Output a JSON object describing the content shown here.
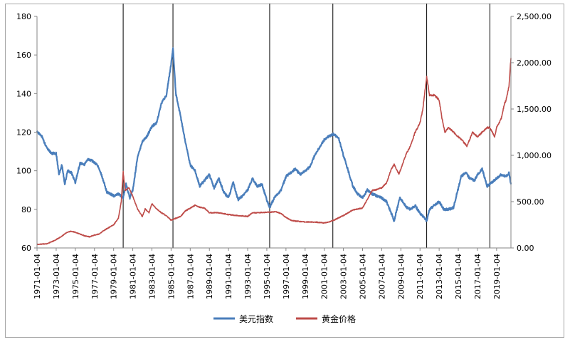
{
  "chart_data": {
    "type": "line",
    "title": "",
    "xlabel": "",
    "ylabel_left": "",
    "ylabel_right": "",
    "y_left_lim": [
      60,
      180
    ],
    "y_left_ticks": [
      "60",
      "80",
      "100",
      "120",
      "140",
      "160",
      "180"
    ],
    "y_right_lim": [
      0,
      2500
    ],
    "y_right_ticks": [
      "0.00",
      "500.00",
      "1,000.00",
      "1,500.00",
      "2,000.00",
      "2,500.00"
    ],
    "x_lim": [
      1971.0,
      2020.5
    ],
    "x_tick_labels": [
      "1971-01-04",
      "1973-01-04",
      "1975-01-04",
      "1977-01-04",
      "1979-01-04",
      "1981-01-04",
      "1983-01-04",
      "1985-01-04",
      "1987-01-04",
      "1989-01-04",
      "1991-01-04",
      "1993-01-04",
      "1995-01-04",
      "1997-01-04",
      "1999-01-04",
      "2001-01-04",
      "2003-01-04",
      "2005-01-04",
      "2007-01-04",
      "2009-01-04",
      "2011-01-04",
      "2013-01-04",
      "2015-01-04",
      "2017-01-04",
      "2019-01-04"
    ],
    "vertical_markers": [
      1980.0,
      1985.2,
      1995.3,
      2001.9,
      2011.7,
      2018.3
    ],
    "grid": false,
    "legend_position": "bottom",
    "series": [
      {
        "name": "美元指数",
        "axis": "left",
        "color": "#4a7ebb",
        "x": [
          1971.0,
          1971.5,
          1972.0,
          1972.5,
          1973.0,
          1973.3,
          1973.6,
          1973.9,
          1974.2,
          1974.6,
          1975.0,
          1975.5,
          1975.9,
          1976.3,
          1976.8,
          1977.3,
          1977.8,
          1978.3,
          1978.7,
          1979.0,
          1979.5,
          1980.0,
          1980.3,
          1980.7,
          1981.0,
          1981.5,
          1982.0,
          1982.5,
          1983.0,
          1983.5,
          1984.0,
          1984.5,
          1985.0,
          1985.2,
          1985.5,
          1986.0,
          1986.5,
          1987.0,
          1987.5,
          1988.0,
          1988.5,
          1989.0,
          1989.5,
          1990.0,
          1990.5,
          1991.0,
          1991.5,
          1992.0,
          1992.5,
          1993.0,
          1993.5,
          1994.0,
          1994.5,
          1995.0,
          1995.3,
          1995.8,
          1996.5,
          1997.0,
          1997.5,
          1998.0,
          1998.5,
          1999.0,
          1999.5,
          2000.0,
          2000.5,
          2001.0,
          2001.5,
          2002.0,
          2002.5,
          2003.0,
          2003.5,
          2004.0,
          2004.5,
          2005.0,
          2005.5,
          2006.0,
          2006.5,
          2007.0,
          2007.5,
          2008.0,
          2008.3,
          2008.6,
          2008.9,
          2009.2,
          2009.6,
          2010.0,
          2010.5,
          2011.0,
          2011.4,
          2011.7,
          2012.0,
          2012.5,
          2013.0,
          2013.5,
          2014.0,
          2014.5,
          2015.0,
          2015.3,
          2015.8,
          2016.2,
          2016.7,
          2017.0,
          2017.5,
          2018.0,
          2018.5,
          2019.0,
          2019.5,
          2020.0,
          2020.3,
          2020.5
        ],
        "values": [
          120,
          118,
          112,
          109,
          109,
          98,
          103,
          93,
          100,
          99,
          94,
          104,
          103,
          106,
          105,
          103,
          97,
          89,
          88,
          87,
          88,
          86,
          93,
          86,
          90,
          107,
          115,
          118,
          123,
          125,
          135,
          139,
          155,
          164,
          140,
          128,
          115,
          103,
          100,
          92,
          95,
          98,
          91,
          96,
          89,
          86,
          94,
          85,
          87,
          90,
          96,
          92,
          93,
          85,
          81,
          86,
          90,
          97,
          99,
          101,
          98,
          100,
          102,
          108,
          112,
          116,
          118,
          119,
          117,
          108,
          100,
          92,
          88,
          86,
          90,
          88,
          87,
          86,
          84,
          78,
          74,
          80,
          86,
          84,
          81,
          80,
          82,
          78,
          76,
          74,
          80,
          82,
          84,
          80,
          80,
          81,
          91,
          97,
          99,
          96,
          95,
          98,
          101,
          92,
          94,
          96,
          98,
          97,
          99,
          93
        ]
      },
      {
        "name": "黄金价格",
        "axis": "right",
        "color": "#be4b48",
        "x": [
          1971.0,
          1972.0,
          1972.5,
          1973.0,
          1973.5,
          1974.0,
          1974.5,
          1975.0,
          1975.5,
          1976.0,
          1976.5,
          1977.0,
          1977.5,
          1978.0,
          1978.5,
          1979.0,
          1979.5,
          1979.8,
          1980.0,
          1980.2,
          1980.6,
          1981.0,
          1981.5,
          1982.0,
          1982.3,
          1982.7,
          1983.0,
          1983.5,
          1984.0,
          1984.5,
          1985.0,
          1985.5,
          1986.0,
          1986.5,
          1987.0,
          1987.5,
          1988.0,
          1988.5,
          1989.0,
          1990.0,
          1991.0,
          1992.0,
          1993.0,
          1993.5,
          1994.0,
          1995.0,
          1996.0,
          1996.5,
          1997.0,
          1997.5,
          1998.0,
          1999.0,
          2000.0,
          2001.0,
          2001.5,
          2002.0,
          2003.0,
          2004.0,
          2005.0,
          2006.0,
          2006.5,
          2007.0,
          2007.5,
          2008.0,
          2008.3,
          2008.8,
          2009.0,
          2009.5,
          2010.0,
          2010.5,
          2011.0,
          2011.3,
          2011.7,
          2012.0,
          2012.5,
          2013.0,
          2013.3,
          2013.6,
          2014.0,
          2014.5,
          2015.0,
          2015.5,
          2015.9,
          2016.5,
          2017.0,
          2017.5,
          2018.0,
          2018.3,
          2018.8,
          2019.0,
          2019.5,
          2019.8,
          2020.0,
          2020.3,
          2020.5
        ],
        "values": [
          38,
          45,
          65,
          90,
          120,
          160,
          180,
          170,
          150,
          130,
          120,
          140,
          150,
          190,
          220,
          250,
          320,
          500,
          820,
          620,
          650,
          560,
          420,
          340,
          420,
          380,
          480,
          420,
          380,
          350,
          300,
          320,
          340,
          400,
          430,
          460,
          440,
          430,
          380,
          380,
          360,
          350,
          340,
          380,
          380,
          385,
          390,
          370,
          330,
          300,
          290,
          280,
          280,
          270,
          280,
          300,
          350,
          410,
          430,
          620,
          630,
          650,
          700,
          850,
          900,
          800,
          850,
          1000,
          1100,
          1250,
          1350,
          1500,
          1850,
          1650,
          1650,
          1600,
          1400,
          1250,
          1300,
          1250,
          1200,
          1150,
          1100,
          1250,
          1200,
          1250,
          1300,
          1300,
          1200,
          1300,
          1400,
          1550,
          1600,
          1750,
          2050
        ]
      }
    ]
  }
}
